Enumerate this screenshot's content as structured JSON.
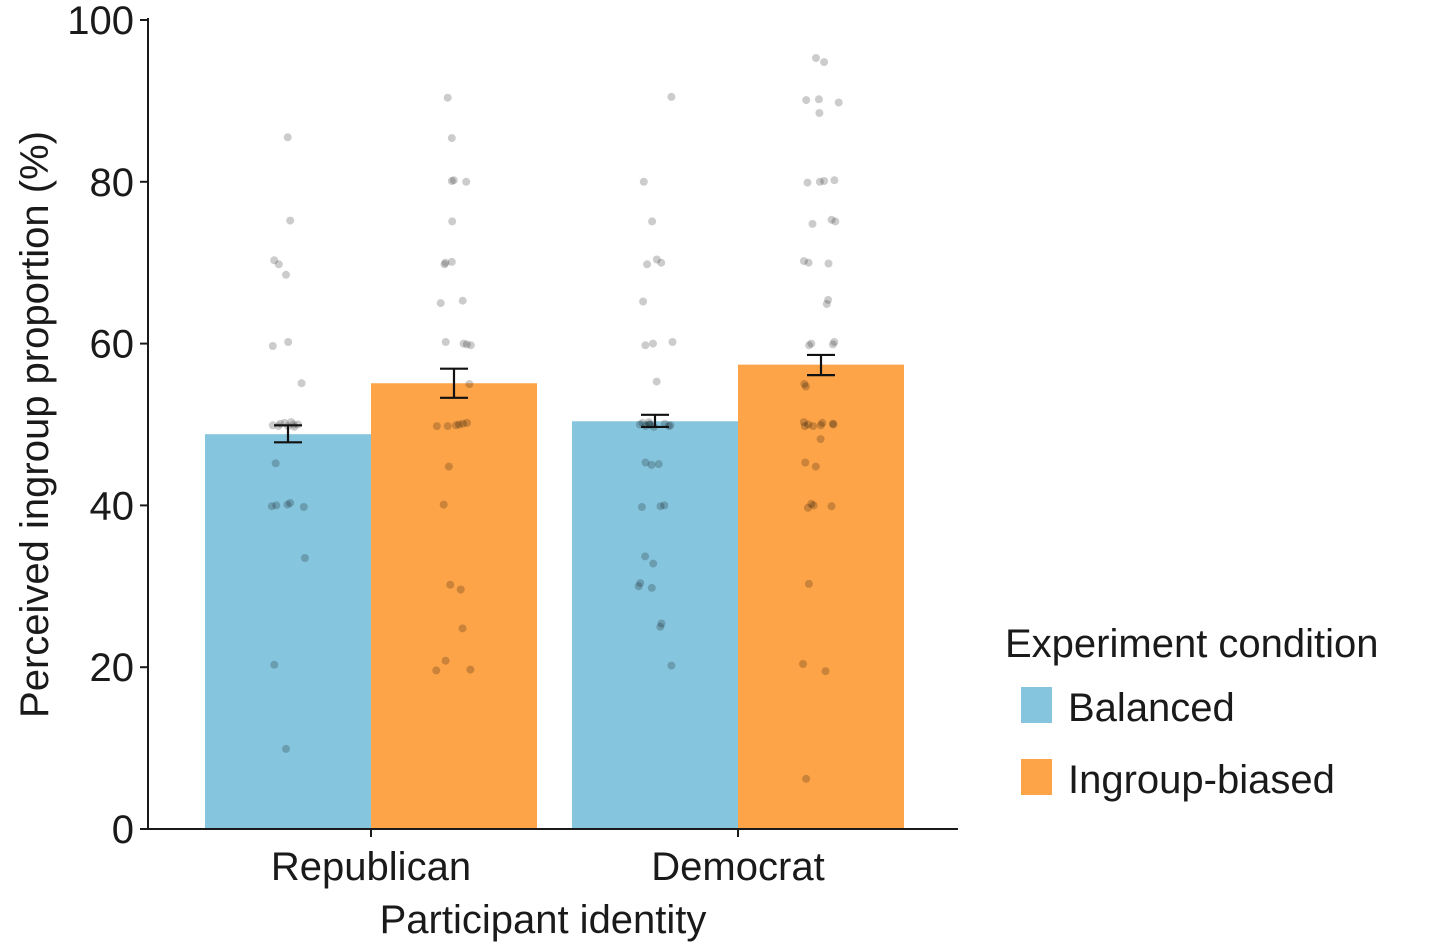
{
  "chart_data": {
    "type": "bar",
    "title": "",
    "xlabel": "Participant identity",
    "ylabel": "Perceived ingroup proportion (%)",
    "ylim": [
      0,
      100
    ],
    "yticks": [
      0,
      20,
      40,
      60,
      80,
      100
    ],
    "grid": false,
    "categories": [
      "Republican",
      "Democrat"
    ],
    "legend": {
      "title": "Experiment condition",
      "position": "right"
    },
    "series": [
      {
        "name": "Balanced",
        "color": "#86c5de",
        "values": [
          48.8,
          50.4
        ],
        "error": [
          [
            47.8,
            49.9
          ],
          [
            49.7,
            51.2
          ]
        ],
        "points": [
          [
            85.5,
            75.2,
            70.3,
            69.8,
            68.5,
            60.2,
            59.7,
            55.1,
            50.3,
            50.2,
            50.1,
            50.0,
            50.0,
            49.9,
            49.8,
            49.8,
            49.7,
            45.2,
            40.3,
            40.1,
            40.0,
            39.9,
            39.8,
            33.5,
            20.3,
            9.9
          ],
          [
            90.5,
            80.0,
            75.1,
            70.4,
            70.0,
            69.8,
            65.2,
            60.2,
            60.0,
            59.8,
            55.3,
            50.3,
            50.2,
            50.1,
            50.0,
            50.0,
            50.0,
            49.9,
            49.8,
            49.8,
            49.7,
            45.3,
            45.1,
            45.0,
            40.0,
            39.9,
            39.8,
            33.7,
            32.8,
            30.4,
            30.0,
            29.8,
            25.4,
            25.0,
            20.2
          ]
        ]
      },
      {
        "name": "Ingroup-biased",
        "color": "#fda448",
        "values": [
          55.1,
          57.4
        ],
        "error": [
          [
            53.3,
            56.9
          ],
          [
            56.1,
            58.6
          ]
        ],
        "points": [
          [
            90.4,
            85.4,
            80.2,
            80.1,
            80.0,
            75.1,
            70.1,
            70.0,
            69.8,
            65.3,
            65.0,
            60.2,
            60.0,
            59.9,
            59.8,
            55.0,
            50.2,
            50.1,
            50.0,
            49.9,
            49.8,
            49.8,
            44.8,
            40.1,
            30.2,
            29.6,
            24.8,
            20.8,
            19.7,
            19.6
          ],
          [
            95.3,
            94.8,
            90.2,
            90.1,
            89.8,
            88.5,
            80.2,
            80.1,
            80.0,
            79.9,
            75.3,
            75.1,
            74.8,
            70.2,
            70.0,
            69.9,
            65.4,
            64.9,
            60.2,
            60.0,
            59.9,
            59.8,
            55.0,
            54.7,
            50.3,
            50.2,
            50.1,
            50.0,
            50.0,
            49.9,
            49.8,
            49.8,
            48.2,
            45.3,
            44.8,
            40.2,
            40.0,
            39.9,
            39.7,
            30.3,
            20.4,
            19.5,
            6.2
          ]
        ]
      }
    ]
  }
}
